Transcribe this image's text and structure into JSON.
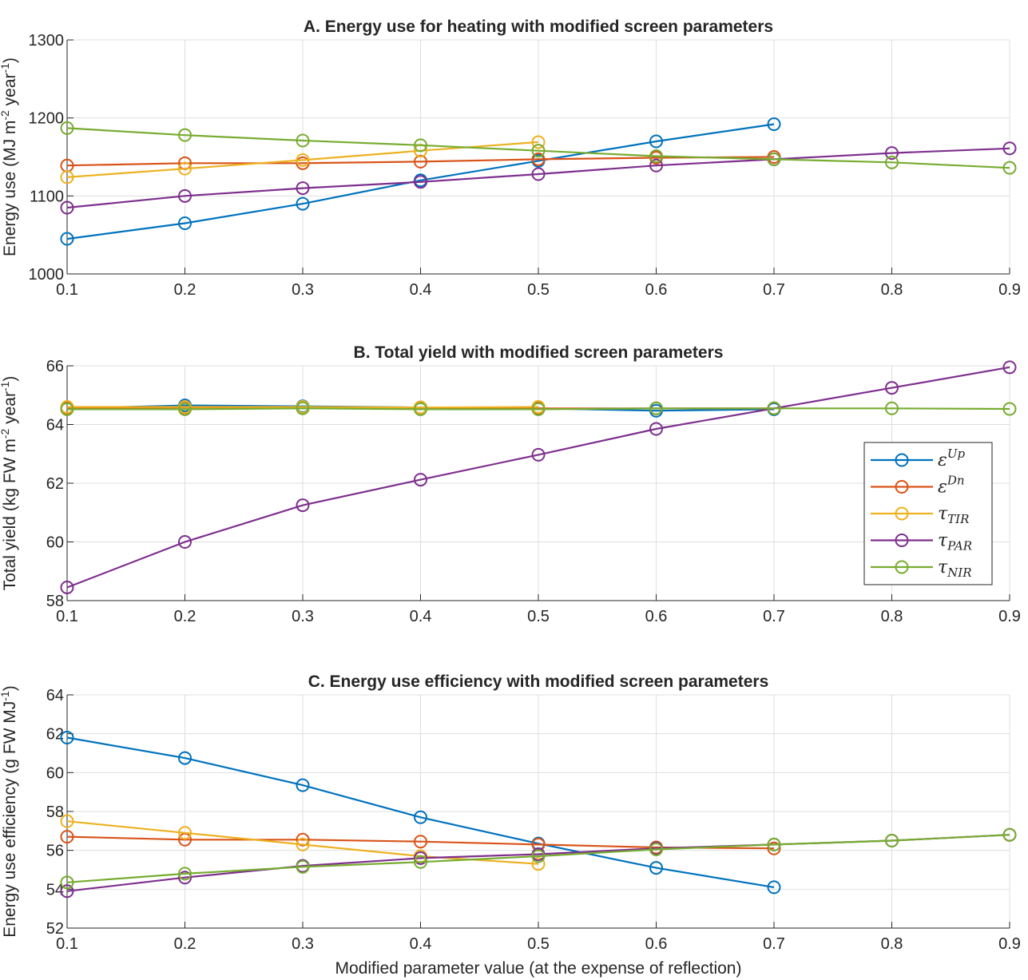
{
  "chart_data": [
    {
      "type": "line",
      "title": "A. Energy use for heating with modified screen parameters",
      "ylabel": "Energy use (MJ m^-2 year^-1)",
      "xlabel": "",
      "xlim": [
        0.1,
        0.9
      ],
      "ylim": [
        1000,
        1300
      ],
      "xticks": [
        "0.1",
        "0.2",
        "0.3",
        "0.4",
        "0.5",
        "0.6",
        "0.7",
        "0.8",
        "0.9"
      ],
      "yticks": [
        "1000",
        "1100",
        "1200",
        "1300"
      ],
      "grid": true,
      "series": [
        {
          "name": "ε^Up",
          "color": "#0072BD",
          "x": [
            0.1,
            0.2,
            0.3,
            0.4,
            0.5,
            0.6,
            0.7
          ],
          "values": [
            1045,
            1065,
            1090,
            1120,
            1145,
            1170,
            1192
          ]
        },
        {
          "name": "ε^Dn",
          "color": "#D95319",
          "x": [
            0.1,
            0.2,
            0.3,
            0.4,
            0.5,
            0.6,
            0.7
          ],
          "values": [
            1139,
            1142,
            1142,
            1144,
            1147,
            1149,
            1150
          ]
        },
        {
          "name": "τ_TIR",
          "color": "#EDB120",
          "x": [
            0.1,
            0.2,
            0.3,
            0.4,
            0.5
          ],
          "values": [
            1124,
            1135,
            1146,
            1158,
            1169
          ]
        },
        {
          "name": "τ_PAR",
          "color": "#7E2F8E",
          "x": [
            0.1,
            0.2,
            0.3,
            0.4,
            0.5,
            0.6,
            0.7,
            0.8,
            0.9
          ],
          "values": [
            1085,
            1100,
            1110,
            1118,
            1128,
            1139,
            1147,
            1155,
            1161
          ]
        },
        {
          "name": "τ_NIR",
          "color": "#77AC30",
          "x": [
            0.1,
            0.2,
            0.3,
            0.4,
            0.5,
            0.6,
            0.7,
            0.8,
            0.9
          ],
          "values": [
            1187,
            1178,
            1171,
            1165,
            1158,
            1151,
            1147,
            1143,
            1136
          ]
        }
      ]
    },
    {
      "type": "line",
      "title": "B. Total yield with modified screen parameters",
      "ylabel": "Total yield (kg FW m^-2 year^-1)",
      "xlabel": "",
      "xlim": [
        0.1,
        0.9
      ],
      "ylim": [
        58,
        66
      ],
      "xticks": [
        "0.1",
        "0.2",
        "0.3",
        "0.4",
        "0.5",
        "0.6",
        "0.7",
        "0.8",
        "0.9"
      ],
      "yticks": [
        "58",
        "60",
        "62",
        "64",
        "66"
      ],
      "grid": true,
      "legend_position": "lower-right",
      "series": [
        {
          "name": "ε^Up",
          "color": "#0072BD",
          "x": [
            0.1,
            0.2,
            0.3,
            0.4,
            0.5,
            0.6,
            0.7
          ],
          "values": [
            64.55,
            64.65,
            64.62,
            64.58,
            64.55,
            64.47,
            64.52
          ]
        },
        {
          "name": "ε^Dn",
          "color": "#D95319",
          "x": [
            0.1,
            0.2,
            0.3,
            0.4,
            0.5,
            0.6,
            0.7
          ],
          "values": [
            64.55,
            64.58,
            64.58,
            64.56,
            64.55,
            64.55,
            64.55
          ]
        },
        {
          "name": "τ_TIR",
          "color": "#EDB120",
          "x": [
            0.1,
            0.2,
            0.3,
            0.4,
            0.5
          ],
          "values": [
            64.6,
            64.6,
            64.6,
            64.58,
            64.6
          ]
        },
        {
          "name": "τ_PAR",
          "color": "#7E2F8E",
          "x": [
            0.1,
            0.2,
            0.3,
            0.4,
            0.5,
            0.6,
            0.7,
            0.8,
            0.9
          ],
          "values": [
            58.45,
            60.0,
            61.25,
            62.12,
            62.97,
            63.85,
            64.55,
            65.25,
            65.95
          ]
        },
        {
          "name": "τ_NIR",
          "color": "#77AC30",
          "x": [
            0.1,
            0.2,
            0.3,
            0.4,
            0.5,
            0.6,
            0.7,
            0.8,
            0.9
          ],
          "values": [
            64.52,
            64.52,
            64.55,
            64.52,
            64.52,
            64.55,
            64.55,
            64.55,
            64.53
          ]
        }
      ]
    },
    {
      "type": "line",
      "title": "C. Energy use efficiency with modified screen parameters",
      "ylabel": "Energy use efficiency (g FW MJ^-1)",
      "xlabel": "Modified parameter value (at the expense of reflection)",
      "xlim": [
        0.1,
        0.9
      ],
      "ylim": [
        52,
        64
      ],
      "xticks": [
        "0.1",
        "0.2",
        "0.3",
        "0.4",
        "0.5",
        "0.6",
        "0.7",
        "0.8",
        "0.9"
      ],
      "yticks": [
        "52",
        "54",
        "56",
        "58",
        "60",
        "62",
        "64"
      ],
      "grid": true,
      "series": [
        {
          "name": "ε^Up",
          "color": "#0072BD",
          "x": [
            0.1,
            0.2,
            0.3,
            0.4,
            0.5,
            0.6,
            0.7
          ],
          "values": [
            61.8,
            60.75,
            59.35,
            57.7,
            56.35,
            55.1,
            54.1
          ]
        },
        {
          "name": "ε^Dn",
          "color": "#D95319",
          "x": [
            0.1,
            0.2,
            0.3,
            0.4,
            0.5,
            0.6,
            0.7
          ],
          "values": [
            56.7,
            56.55,
            56.55,
            56.45,
            56.3,
            56.15,
            56.1
          ]
        },
        {
          "name": "τ_TIR",
          "color": "#EDB120",
          "x": [
            0.1,
            0.2,
            0.3,
            0.4,
            0.5
          ],
          "values": [
            57.5,
            56.9,
            56.3,
            55.7,
            55.3
          ]
        },
        {
          "name": "τ_PAR",
          "color": "#7E2F8E",
          "x": [
            0.1,
            0.2,
            0.3,
            0.4,
            0.5,
            0.6,
            0.7,
            0.8,
            0.9
          ],
          "values": [
            53.9,
            54.6,
            55.2,
            55.6,
            55.8,
            56.1,
            56.3,
            56.5,
            56.8
          ]
        },
        {
          "name": "τ_NIR",
          "color": "#77AC30",
          "x": [
            0.1,
            0.2,
            0.3,
            0.4,
            0.5,
            0.6,
            0.7,
            0.8,
            0.9
          ],
          "values": [
            54.35,
            54.8,
            55.15,
            55.4,
            55.7,
            56.05,
            56.3,
            56.5,
            56.8
          ]
        }
      ]
    }
  ],
  "legend": {
    "entries": [
      {
        "base": "ε",
        "sup": "Up",
        "sub": ""
      },
      {
        "base": "ε",
        "sup": "Dn",
        "sub": ""
      },
      {
        "base": "τ",
        "sup": "",
        "sub": "TIR"
      },
      {
        "base": "τ",
        "sup": "",
        "sub": "PAR"
      },
      {
        "base": "τ",
        "sup": "",
        "sub": "NIR"
      }
    ]
  }
}
